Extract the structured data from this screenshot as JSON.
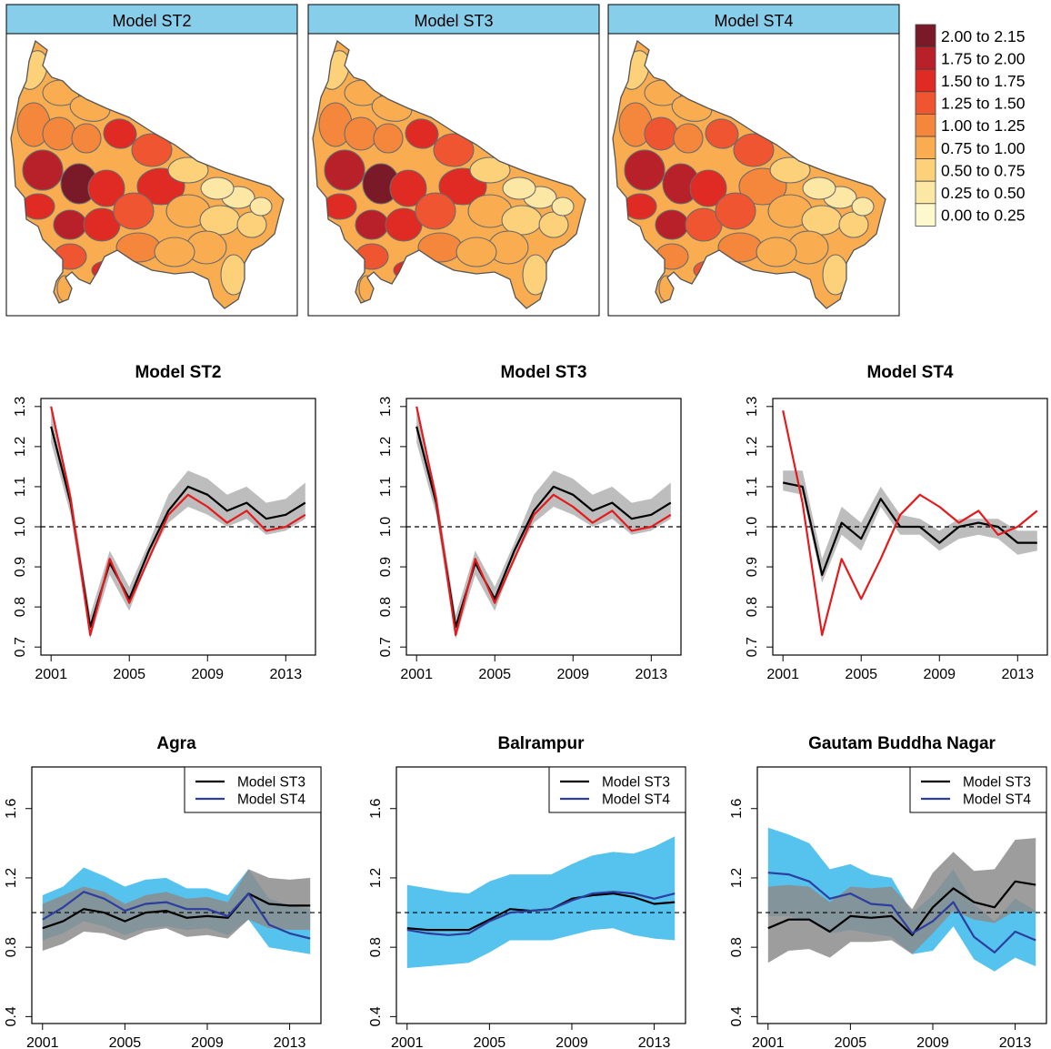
{
  "maps": {
    "panels": [
      {
        "title": "Model ST2"
      },
      {
        "title": "Model ST3"
      },
      {
        "title": "Model ST4"
      }
    ],
    "legend": [
      {
        "label": "2.00 to 2.15",
        "color": "#7a1a29"
      },
      {
        "label": "1.75 to 2.00",
        "color": "#b8202a"
      },
      {
        "label": "1.50 to 1.75",
        "color": "#e02a24"
      },
      {
        "label": "1.25 to 1.50",
        "color": "#ee5530"
      },
      {
        "label": "1.00 to 1.25",
        "color": "#f5873c"
      },
      {
        "label": "0.75 to 1.00",
        "color": "#f9ad50"
      },
      {
        "label": "0.50 to 0.75",
        "color": "#fcd17a"
      },
      {
        "label": "0.25 to 0.50",
        "color": "#fde7a4"
      },
      {
        "label": "0.00 to 0.25",
        "color": "#fef8cf"
      }
    ]
  },
  "chart_data": [
    {
      "type": "line",
      "title": "Model ST2",
      "x": [
        2001,
        2002,
        2003,
        2004,
        2005,
        2006,
        2007,
        2008,
        2009,
        2010,
        2011,
        2012,
        2013,
        2014
      ],
      "xticks": [
        2001,
        2005,
        2009,
        2013
      ],
      "yticks": [
        0.7,
        0.8,
        0.9,
        1.0,
        1.1,
        1.2,
        1.3
      ],
      "ylim": [
        0.68,
        1.32
      ],
      "reference_line": 1.0,
      "band": {
        "lower": [
          1.21,
          1.03,
          0.72,
          0.88,
          0.79,
          0.92,
          1.01,
          1.05,
          1.03,
          1.0,
          1.02,
          0.98,
          0.99,
          1.02
        ],
        "upper": [
          1.3,
          1.09,
          0.78,
          0.94,
          0.85,
          0.96,
          1.08,
          1.14,
          1.12,
          1.08,
          1.1,
          1.06,
          1.07,
          1.11
        ]
      },
      "series": [
        {
          "color": "#000000",
          "values": [
            1.25,
            1.06,
            0.75,
            0.91,
            0.82,
            0.94,
            1.04,
            1.1,
            1.08,
            1.04,
            1.06,
            1.02,
            1.03,
            1.06
          ]
        },
        {
          "color": "#e41a1c",
          "values": [
            1.3,
            1.07,
            0.73,
            0.92,
            0.81,
            0.92,
            1.03,
            1.08,
            1.05,
            1.01,
            1.04,
            0.99,
            1.0,
            1.03
          ]
        }
      ]
    },
    {
      "type": "line",
      "title": "Model ST3",
      "x": [
        2001,
        2002,
        2003,
        2004,
        2005,
        2006,
        2007,
        2008,
        2009,
        2010,
        2011,
        2012,
        2013,
        2014
      ],
      "xticks": [
        2001,
        2005,
        2009,
        2013
      ],
      "yticks": [
        0.7,
        0.8,
        0.9,
        1.0,
        1.1,
        1.2,
        1.3
      ],
      "ylim": [
        0.68,
        1.32
      ],
      "reference_line": 1.0,
      "band": {
        "lower": [
          1.21,
          1.03,
          0.72,
          0.88,
          0.79,
          0.92,
          1.01,
          1.05,
          1.03,
          1.0,
          1.02,
          0.98,
          0.99,
          1.02
        ],
        "upper": [
          1.3,
          1.09,
          0.78,
          0.94,
          0.85,
          0.96,
          1.08,
          1.14,
          1.12,
          1.08,
          1.1,
          1.06,
          1.07,
          1.11
        ]
      },
      "series": [
        {
          "color": "#000000",
          "values": [
            1.25,
            1.06,
            0.75,
            0.91,
            0.82,
            0.94,
            1.04,
            1.1,
            1.08,
            1.04,
            1.06,
            1.02,
            1.03,
            1.06
          ]
        },
        {
          "color": "#e41a1c",
          "values": [
            1.3,
            1.07,
            0.73,
            0.92,
            0.81,
            0.92,
            1.03,
            1.08,
            1.05,
            1.01,
            1.04,
            0.99,
            1.0,
            1.03
          ]
        }
      ]
    },
    {
      "type": "line",
      "title": "Model ST4",
      "x": [
        2001,
        2002,
        2003,
        2004,
        2005,
        2006,
        2007,
        2008,
        2009,
        2010,
        2011,
        2012,
        2013,
        2014
      ],
      "xticks": [
        2001,
        2005,
        2009,
        2013
      ],
      "yticks": [
        0.7,
        0.8,
        0.9,
        1.0,
        1.1,
        1.2,
        1.3
      ],
      "ylim": [
        0.68,
        1.32
      ],
      "reference_line": 1.0,
      "band": {
        "lower": [
          1.09,
          1.08,
          0.86,
          0.98,
          0.94,
          1.05,
          0.98,
          0.98,
          0.94,
          0.97,
          0.98,
          0.97,
          0.93,
          0.94
        ],
        "upper": [
          1.14,
          1.14,
          0.92,
          1.05,
          1.01,
          1.1,
          1.03,
          1.02,
          0.99,
          1.02,
          1.02,
          1.02,
          0.99,
          0.99
        ]
      },
      "series": [
        {
          "color": "#000000",
          "values": [
            1.11,
            1.1,
            0.88,
            1.01,
            0.97,
            1.07,
            1.0,
            1.0,
            0.96,
            1.0,
            1.01,
            1.0,
            0.96,
            0.96
          ]
        },
        {
          "color": "#e41a1c",
          "values": [
            1.29,
            1.06,
            0.73,
            0.92,
            0.82,
            0.92,
            1.03,
            1.08,
            1.05,
            1.01,
            1.04,
            0.98,
            1.0,
            1.04
          ]
        }
      ]
    },
    {
      "type": "line",
      "title": "Agra",
      "x": [
        2001,
        2002,
        2003,
        2004,
        2005,
        2006,
        2007,
        2008,
        2009,
        2010,
        2011,
        2012,
        2013,
        2014
      ],
      "xticks": [
        2001,
        2005,
        2009,
        2013
      ],
      "yticks": [
        0.4,
        0.8,
        1.2,
        1.6
      ],
      "ylim": [
        0.36,
        1.84
      ],
      "reference_line": 1.0,
      "legend_position": "top-right",
      "bands": [
        {
          "color": "#56c2ee",
          "lower": [
            0.84,
            0.88,
            0.95,
            0.92,
            0.87,
            0.91,
            0.92,
            0.9,
            0.91,
            0.87,
            0.96,
            0.8,
            0.78,
            0.76
          ],
          "upper": [
            1.1,
            1.15,
            1.26,
            1.21,
            1.15,
            1.19,
            1.2,
            1.14,
            1.14,
            1.1,
            1.25,
            1.08,
            1.04,
            1.02
          ]
        },
        {
          "color": "#8c8c8c",
          "lower": [
            0.78,
            0.82,
            0.89,
            0.88,
            0.84,
            0.89,
            0.91,
            0.86,
            0.87,
            0.85,
            0.96,
            0.91,
            0.9,
            0.9
          ],
          "upper": [
            1.05,
            1.1,
            1.15,
            1.12,
            1.05,
            1.1,
            1.12,
            1.08,
            1.09,
            1.06,
            1.25,
            1.2,
            1.19,
            1.2
          ]
        }
      ],
      "series": [
        {
          "name": "Model ST3",
          "color": "#000000",
          "values": [
            0.91,
            0.95,
            1.02,
            1.0,
            0.95,
            1.0,
            1.01,
            0.97,
            0.98,
            0.97,
            1.11,
            1.05,
            1.04,
            1.04
          ]
        },
        {
          "name": "Model ST4",
          "color": "#2c3e9e",
          "values": [
            0.96,
            1.03,
            1.12,
            1.08,
            1.01,
            1.05,
            1.06,
            1.02,
            1.02,
            0.98,
            1.11,
            0.93,
            0.88,
            0.85
          ]
        }
      ]
    },
    {
      "type": "line",
      "title": "Balrampur",
      "x": [
        2001,
        2002,
        2003,
        2004,
        2005,
        2006,
        2007,
        2008,
        2009,
        2010,
        2011,
        2012,
        2013,
        2014
      ],
      "xticks": [
        2001,
        2005,
        2009,
        2013
      ],
      "yticks": [
        0.4,
        0.8,
        1.2,
        1.6
      ],
      "ylim": [
        0.36,
        1.84
      ],
      "reference_line": 1.0,
      "legend_position": "top-right",
      "bands": [
        {
          "color": "#56c2ee",
          "lower": [
            0.68,
            0.69,
            0.7,
            0.71,
            0.77,
            0.84,
            0.84,
            0.84,
            0.87,
            0.9,
            0.91,
            0.87,
            0.85,
            0.84
          ],
          "upper": [
            1.16,
            1.14,
            1.12,
            1.11,
            1.18,
            1.22,
            1.22,
            1.22,
            1.28,
            1.33,
            1.35,
            1.34,
            1.38,
            1.44
          ]
        },
        {
          "color": "#8c8c8c",
          "lower": [
            0.72,
            0.76,
            0.77,
            0.77,
            0.79,
            0.84,
            0.84,
            0.85,
            0.87,
            0.9,
            0.9,
            0.86,
            0.82,
            0.8
          ]
        }
      ],
      "series": [
        {
          "name": "Model ST3",
          "color": "#000000",
          "values": [
            0.91,
            0.9,
            0.9,
            0.9,
            0.96,
            1.02,
            1.01,
            1.02,
            1.08,
            1.1,
            1.11,
            1.09,
            1.05,
            1.06
          ]
        },
        {
          "name": "Model ST4",
          "color": "#2c3e9e",
          "values": [
            0.9,
            0.88,
            0.87,
            0.88,
            0.95,
            1.0,
            1.01,
            1.02,
            1.07,
            1.11,
            1.12,
            1.11,
            1.08,
            1.11
          ]
        }
      ]
    },
    {
      "type": "line",
      "title": "Gautam Buddha Nagar",
      "x": [
        2001,
        2002,
        2003,
        2004,
        2005,
        2006,
        2007,
        2008,
        2009,
        2010,
        2011,
        2012,
        2013,
        2014
      ],
      "xticks": [
        2001,
        2005,
        2009,
        2013
      ],
      "yticks": [
        0.4,
        0.8,
        1.2,
        1.6
      ],
      "ylim": [
        0.36,
        1.84
      ],
      "reference_line": 1.0,
      "legend_position": "top-right",
      "bands": [
        {
          "color": "#56c2ee",
          "lower": [
            0.98,
            0.98,
            0.95,
            0.88,
            0.9,
            0.88,
            0.86,
            0.76,
            0.78,
            0.92,
            0.73,
            0.66,
            0.74,
            0.69
          ],
          "upper": [
            1.49,
            1.45,
            1.4,
            1.25,
            1.28,
            1.22,
            1.2,
            1.0,
            1.1,
            1.25,
            1.05,
            0.95,
            1.08,
            1.01
          ]
        },
        {
          "color": "#8c8c8c",
          "lower": [
            0.71,
            0.78,
            0.79,
            0.74,
            0.83,
            0.83,
            0.84,
            0.76,
            0.88,
            1.01,
            0.96,
            0.94,
            1.01,
            1.0
          ],
          "upper": [
            1.15,
            1.16,
            1.15,
            1.06,
            1.15,
            1.14,
            1.15,
            1.02,
            1.23,
            1.35,
            1.24,
            1.25,
            1.42,
            1.43
          ]
        }
      ],
      "series": [
        {
          "name": "Model ST3",
          "color": "#000000",
          "values": [
            0.91,
            0.96,
            0.96,
            0.89,
            0.98,
            0.97,
            0.98,
            0.87,
            1.03,
            1.14,
            1.06,
            1.03,
            1.18,
            1.16
          ]
        },
        {
          "name": "Model ST4",
          "color": "#2c3e9e",
          "values": [
            1.23,
            1.22,
            1.18,
            1.08,
            1.11,
            1.05,
            1.04,
            0.88,
            0.95,
            1.06,
            0.86,
            0.77,
            0.89,
            0.84
          ]
        }
      ]
    }
  ]
}
